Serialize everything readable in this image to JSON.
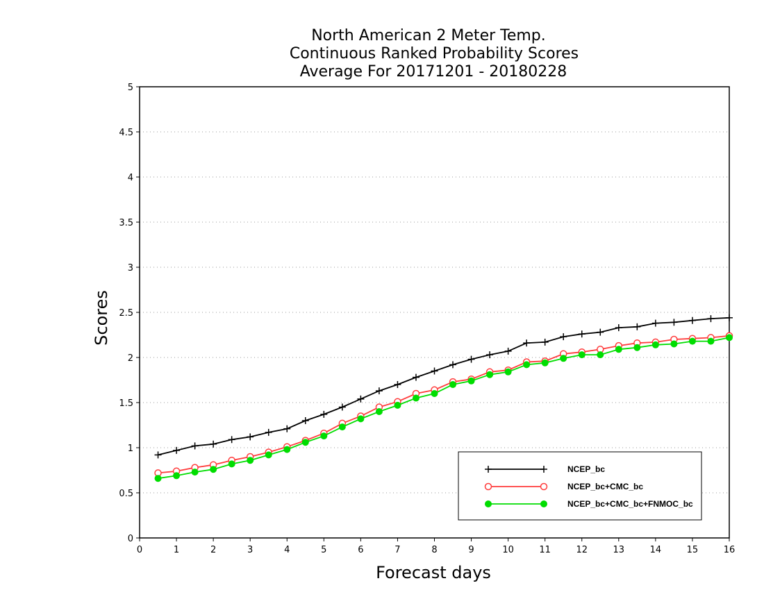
{
  "chart_data": {
    "type": "line",
    "title_lines": [
      "North American 2 Meter Temp.",
      "Continuous Ranked Probability Scores",
      "Average For 20171201 - 20180228"
    ],
    "xlabel": "Forecast days",
    "ylabel": "Scores",
    "xlim": [
      0,
      16
    ],
    "ylim": [
      0,
      5
    ],
    "x_ticks": [
      "0",
      "1",
      "2",
      "3",
      "4",
      "5",
      "6",
      "7",
      "8",
      "9",
      "10",
      "11",
      "12",
      "13",
      "14",
      "15",
      "16"
    ],
    "y_ticks": [
      "0",
      "0.5",
      "1",
      "1.5",
      "2",
      "2.5",
      "3",
      "3.5",
      "4",
      "4.5",
      "5"
    ],
    "grid": "horizontal dotted",
    "legend_position": "bottom-right",
    "x": [
      0.5,
      1,
      1.5,
      2,
      2.5,
      3,
      3.5,
      4,
      4.5,
      5,
      5.5,
      6,
      6.5,
      7,
      7.5,
      8,
      8.5,
      9,
      9.5,
      10,
      10.5,
      11,
      11.5,
      12,
      12.5,
      13,
      13.5,
      14,
      14.5,
      15,
      15.5,
      16
    ],
    "series": [
      {
        "name": "NCEP_bc",
        "color": "#000000",
        "marker": "plus",
        "values": [
          0.92,
          0.97,
          1.02,
          1.04,
          1.09,
          1.12,
          1.17,
          1.21,
          1.3,
          1.37,
          1.45,
          1.54,
          1.63,
          1.7,
          1.78,
          1.85,
          1.92,
          1.98,
          2.03,
          2.07,
          2.16,
          2.17,
          2.23,
          2.26,
          2.28,
          2.33,
          2.34,
          2.38,
          2.39,
          2.41,
          2.43,
          2.44
        ]
      },
      {
        "name": "NCEP_bc+CMC_bc",
        "color": "#ff3b3b",
        "marker": "open-circle",
        "values": [
          0.72,
          0.74,
          0.78,
          0.81,
          0.86,
          0.9,
          0.95,
          1.01,
          1.08,
          1.16,
          1.27,
          1.35,
          1.45,
          1.51,
          1.6,
          1.64,
          1.73,
          1.76,
          1.84,
          1.86,
          1.95,
          1.96,
          2.04,
          2.06,
          2.09,
          2.13,
          2.16,
          2.17,
          2.2,
          2.21,
          2.22,
          2.24
        ]
      },
      {
        "name": "NCEP_bc+CMC_bc+FNMOC_bc",
        "color": "#00dd00",
        "marker": "filled-circle",
        "values": [
          0.66,
          0.69,
          0.73,
          0.76,
          0.82,
          0.86,
          0.92,
          0.98,
          1.06,
          1.13,
          1.23,
          1.32,
          1.4,
          1.47,
          1.55,
          1.6,
          1.7,
          1.74,
          1.81,
          1.84,
          1.92,
          1.94,
          1.99,
          2.03,
          2.03,
          2.09,
          2.11,
          2.14,
          2.15,
          2.18,
          2.18,
          2.22
        ]
      }
    ]
  }
}
